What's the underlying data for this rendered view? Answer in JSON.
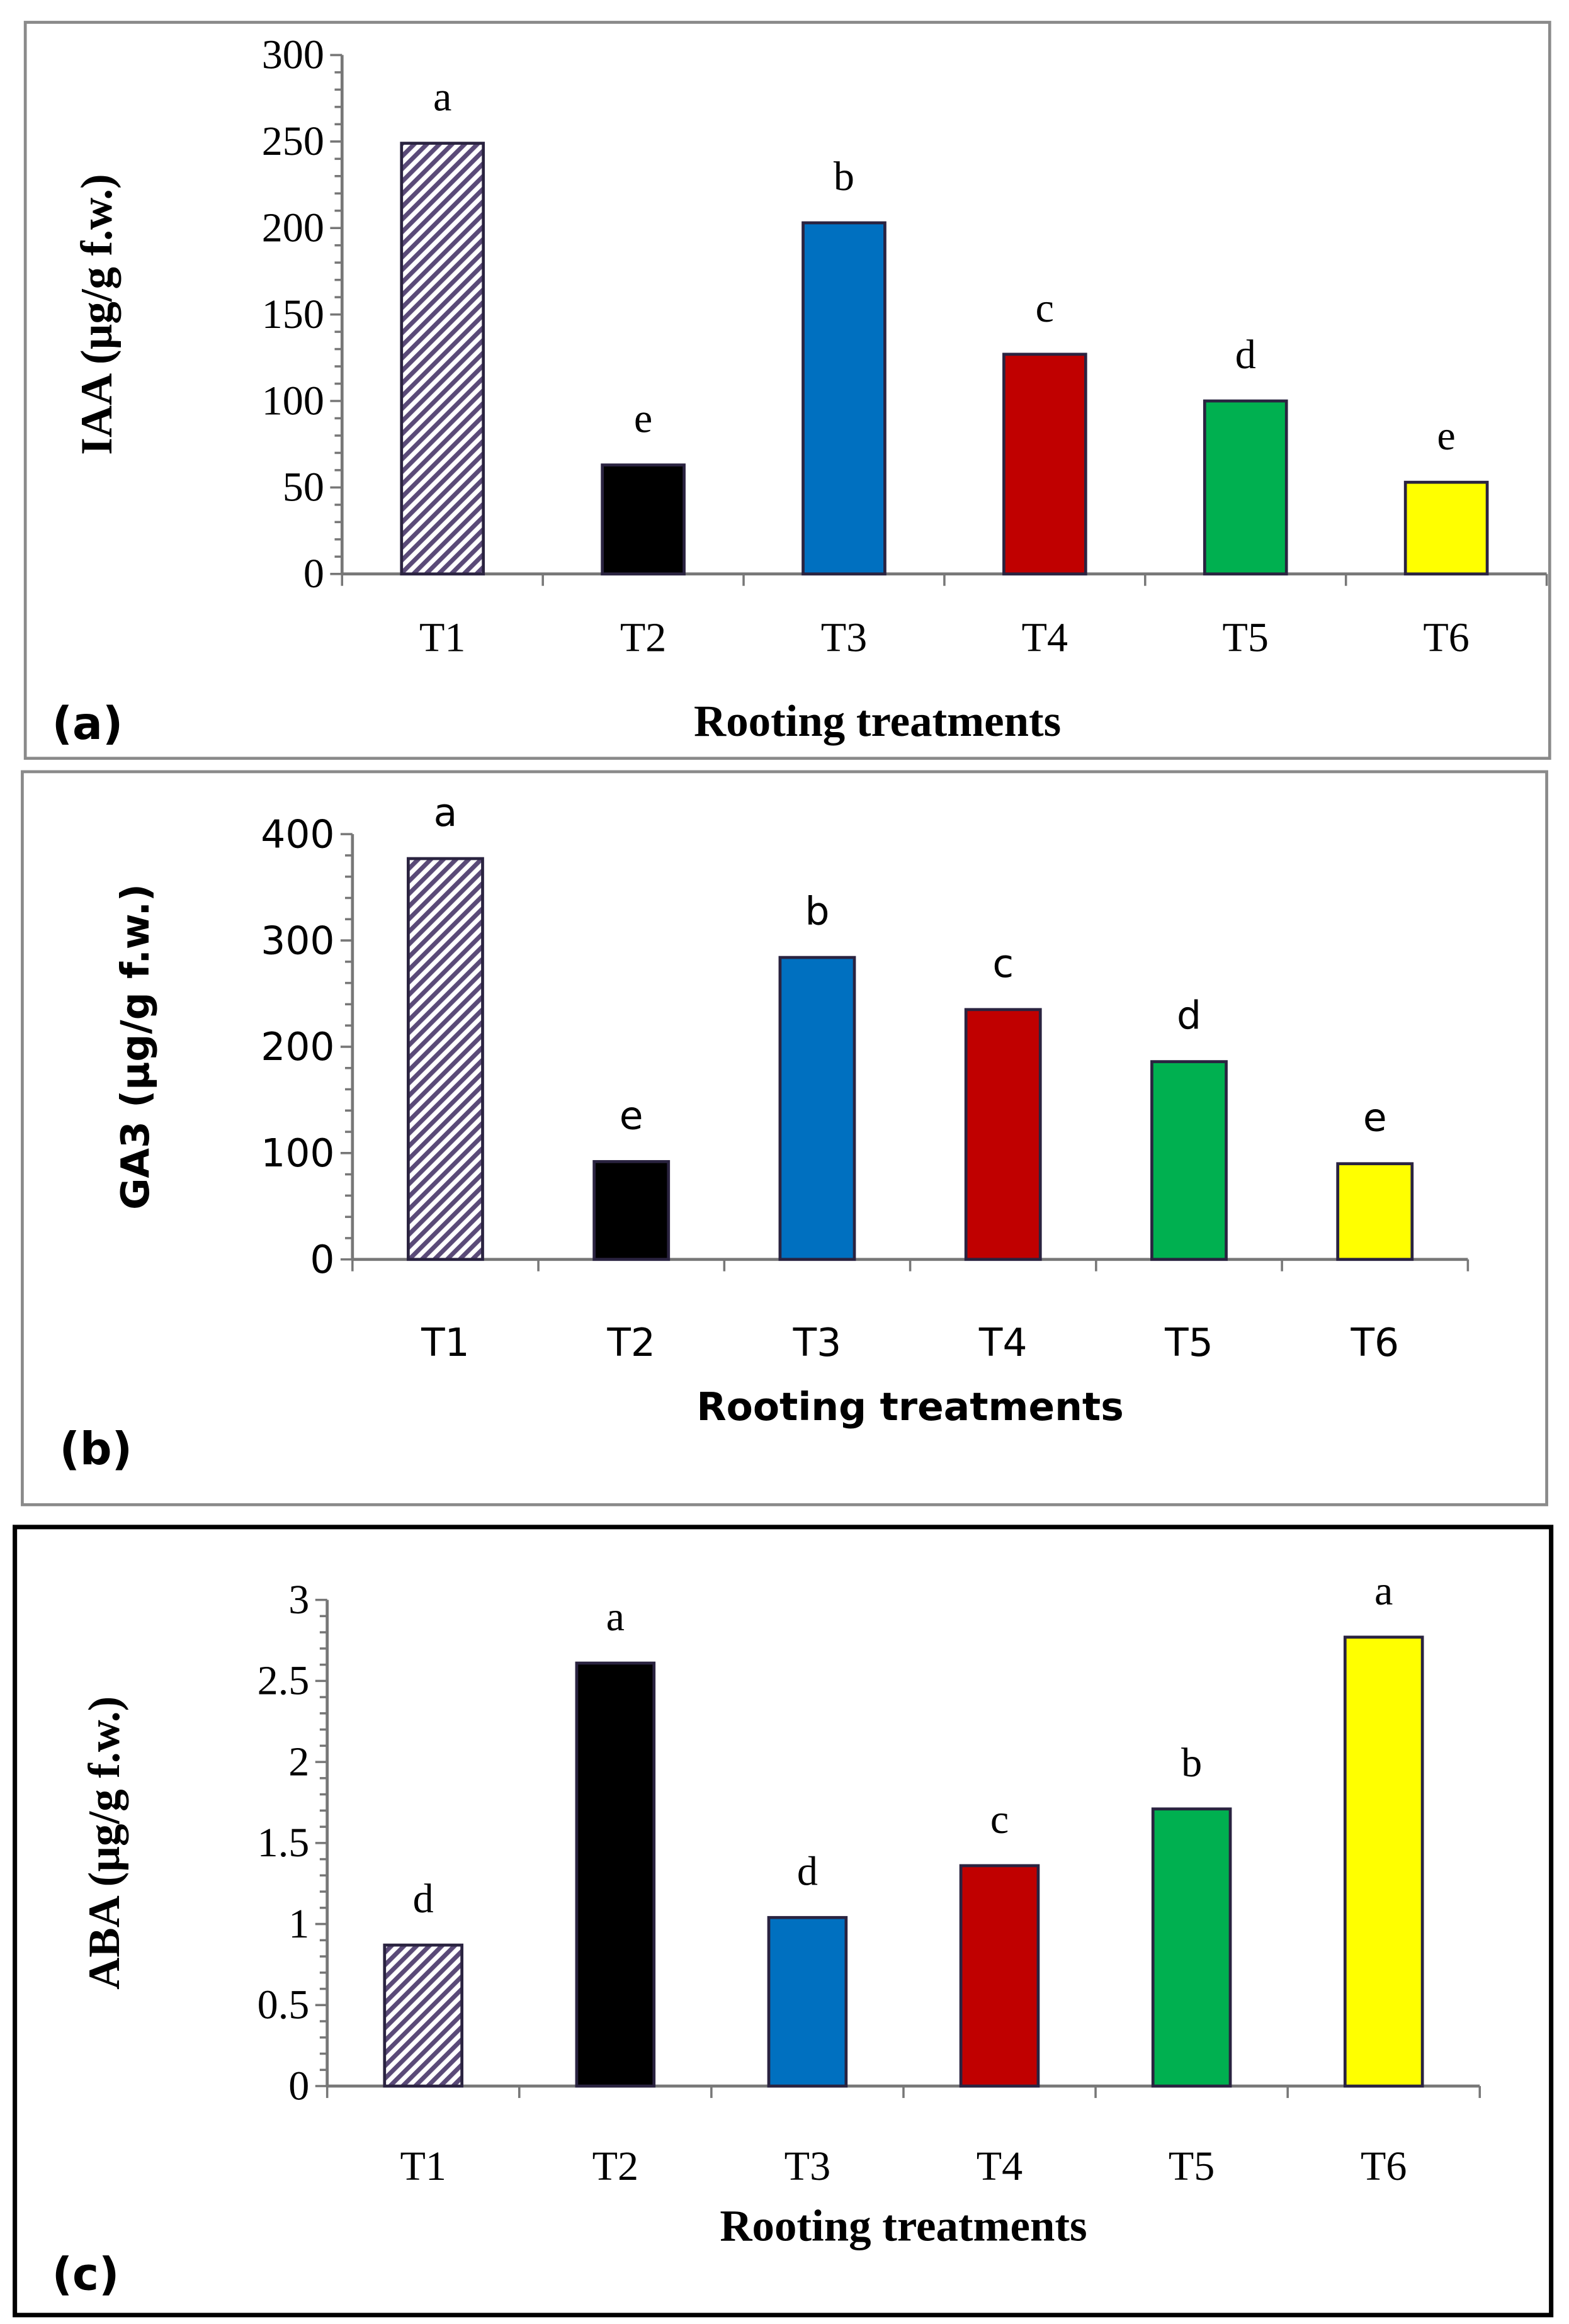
{
  "colors": {
    "T1": "#5a4a78",
    "T2": "#000000",
    "T3": "#0070C0",
    "T4": "#C00000",
    "T5": "#00B050",
    "T6": "#FFFF00",
    "edge": "#2a2340"
  },
  "chart_data": [
    {
      "type": "bar",
      "panel_label": "(a)",
      "title": "",
      "xlabel": "Rooting treatments",
      "ylabel": "IAA (µg/g f.w.)",
      "ylim": [
        0,
        300
      ],
      "yticks": [
        "0",
        "50",
        "100",
        "150",
        "200",
        "250",
        "300"
      ],
      "categories": [
        "T1",
        "T2",
        "T3",
        "T4",
        "T5",
        "T6"
      ],
      "values": [
        249,
        63,
        203,
        127,
        100,
        53
      ],
      "letters": [
        "a",
        "e",
        "b",
        "c",
        "d",
        "e"
      ],
      "grid": false
    },
    {
      "type": "bar",
      "panel_label": "(b)",
      "title": "",
      "xlabel": "Rooting treatments",
      "ylabel": "GA3 (µg/g f.w.)",
      "ylim": [
        0,
        400
      ],
      "yticks": [
        "0",
        "100",
        "200",
        "300",
        "400"
      ],
      "categories": [
        "T1",
        "T2",
        "T3",
        "T4",
        "T5",
        "T6"
      ],
      "values": [
        377,
        92,
        284,
        235,
        186,
        90
      ],
      "letters": [
        "a",
        "e",
        "b",
        "c",
        "d",
        "e"
      ],
      "grid": false
    },
    {
      "type": "bar",
      "panel_label": "(c)",
      "title": "",
      "xlabel": "Rooting treatments",
      "ylabel": "ABA (µg/g f.w.)",
      "ylim": [
        0,
        3
      ],
      "yticks": [
        "0",
        "0.5",
        "1",
        "1.5",
        "2",
        "2.5",
        "3"
      ],
      "categories": [
        "T1",
        "T2",
        "T3",
        "T4",
        "T5",
        "T6"
      ],
      "values": [
        0.87,
        2.61,
        1.04,
        1.36,
        1.71,
        2.77
      ],
      "letters": [
        "d",
        "a",
        "d",
        "c",
        "b",
        "a"
      ],
      "grid": false
    }
  ]
}
